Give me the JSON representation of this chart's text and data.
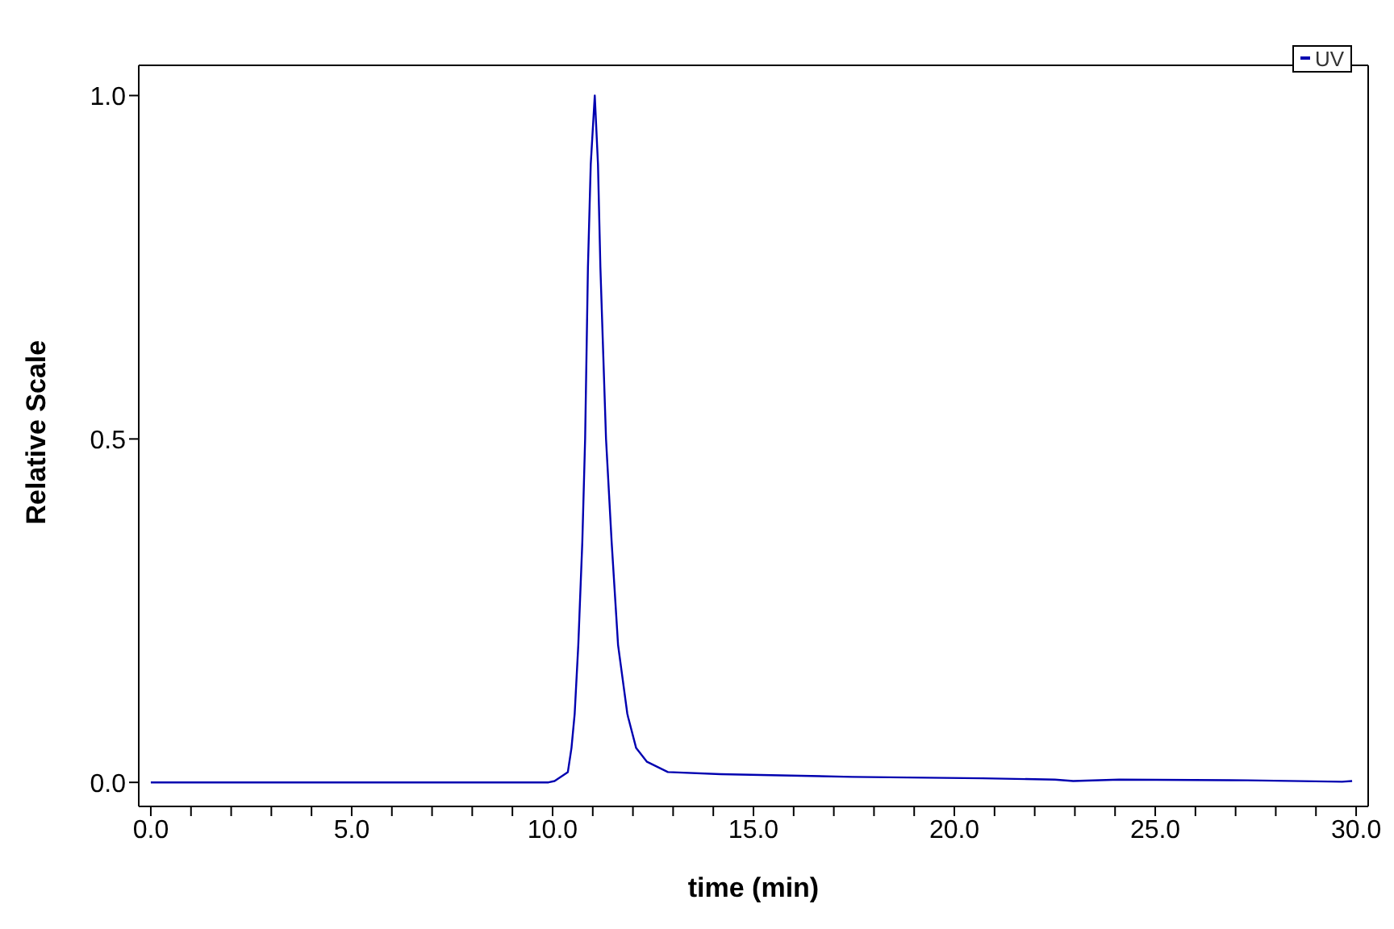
{
  "chart_data": {
    "type": "line",
    "xlabel": "time (min)",
    "ylabel": "Relative Scale",
    "legend": "top right",
    "grid": false,
    "marker": "none",
    "line_style": "solid",
    "xlim": [
      -0.3,
      30.3
    ],
    "ylim": [
      -0.035,
      1.044
    ],
    "xticks": [
      {
        "value": 0,
        "label": "0.0"
      },
      {
        "value": 1,
        "label": null
      },
      {
        "value": 2,
        "label": null
      },
      {
        "value": 3,
        "label": null
      },
      {
        "value": 4,
        "label": null
      },
      {
        "value": 5,
        "label": "5.0"
      },
      {
        "value": 6,
        "label": null
      },
      {
        "value": 7,
        "label": null
      },
      {
        "value": 8,
        "label": null
      },
      {
        "value": 9,
        "label": null
      },
      {
        "value": 10,
        "label": "10.0"
      },
      {
        "value": 11,
        "label": null
      },
      {
        "value": 12,
        "label": null
      },
      {
        "value": 13,
        "label": null
      },
      {
        "value": 14,
        "label": null
      },
      {
        "value": 15,
        "label": "15.0"
      },
      {
        "value": 16,
        "label": null
      },
      {
        "value": 17,
        "label": null
      },
      {
        "value": 18,
        "label": null
      },
      {
        "value": 19,
        "label": null
      },
      {
        "value": 20,
        "label": "20.0"
      },
      {
        "value": 21,
        "label": null
      },
      {
        "value": 22,
        "label": null
      },
      {
        "value": 23,
        "label": null
      },
      {
        "value": 24,
        "label": null
      },
      {
        "value": 25,
        "label": "25.0"
      },
      {
        "value": 26,
        "label": null
      },
      {
        "value": 27,
        "label": null
      },
      {
        "value": 28,
        "label": null
      },
      {
        "value": 29,
        "label": null
      },
      {
        "value": 30,
        "label": "30.0"
      }
    ],
    "yticks": [
      {
        "value": 0,
        "label": "0.0"
      },
      {
        "value": 0.5,
        "label": "0.5"
      },
      {
        "value": 1,
        "label": "1.0"
      }
    ],
    "series": [
      {
        "name": "UV",
        "color": "#0000b0",
        "x": [
          0,
          5,
          9.9,
          10.05,
          10.38,
          10.47,
          10.55,
          10.64,
          10.74,
          10.81,
          10.88,
          10.95,
          11.05,
          11.13,
          11.19,
          11.33,
          11.47,
          11.63,
          11.86,
          11.88,
          12.08,
          12.35,
          12.87,
          14.18,
          17.46,
          20.7,
          22.5,
          22.96,
          24.1,
          27.3,
          29.65,
          29.9
        ],
        "values": [
          0,
          0,
          0,
          0.002,
          0.015,
          0.05,
          0.1,
          0.2,
          0.35,
          0.5,
          0.75,
          0.9,
          1.0,
          0.9,
          0.75,
          0.5,
          0.35,
          0.2,
          0.1,
          0.095,
          0.05,
          0.03,
          0.015,
          0.012,
          0.008,
          0.006,
          0.004,
          0.002,
          0.004,
          0.003,
          0.001,
          0.002
        ]
      }
    ]
  }
}
